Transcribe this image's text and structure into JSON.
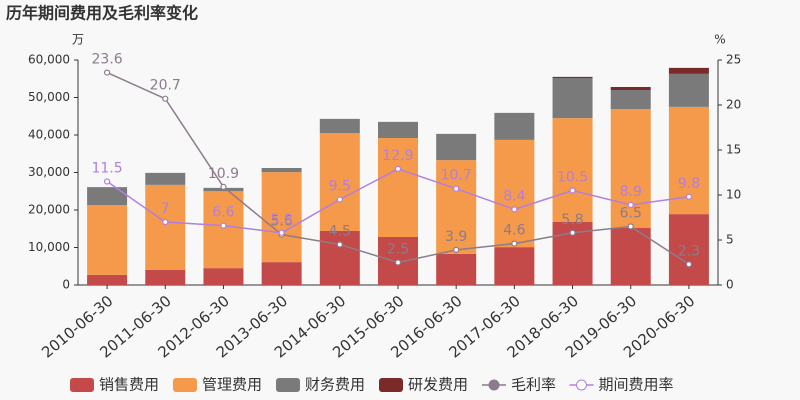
{
  "chart_data": {
    "type": "bar",
    "title": "历年期间费用及毛利率变化",
    "y_unit": "万",
    "y2_unit": "%",
    "categories": [
      "2010-06-30",
      "2011-06-30",
      "2012-06-30",
      "2013-06-30",
      "2014-06-30",
      "2015-06-30",
      "2016-06-30",
      "2017-06-30",
      "2018-06-30",
      "2019-06-30",
      "2020-06-30"
    ],
    "series": [
      {
        "name": "销售费用",
        "type": "bar",
        "color": "#c44a4a",
        "values": [
          2700,
          4000,
          4500,
          6100,
          14400,
          12800,
          8300,
          10100,
          16800,
          15200,
          18900
        ]
      },
      {
        "name": "管理费用",
        "type": "bar",
        "color": "#f5994a",
        "values": [
          18600,
          22700,
          20500,
          24000,
          26100,
          26400,
          25000,
          28600,
          27700,
          31700,
          28600
        ]
      },
      {
        "name": "财务费用",
        "type": "bar",
        "color": "#7a7a7a",
        "values": [
          4800,
          3200,
          900,
          1100,
          3800,
          4300,
          7000,
          7200,
          10700,
          5100,
          8800
        ]
      },
      {
        "name": "研发费用",
        "type": "bar",
        "color": "#7b2a2a",
        "values": [
          0,
          0,
          0,
          0,
          0,
          0,
          0,
          0,
          300,
          800,
          1600
        ]
      },
      {
        "name": "毛利率",
        "type": "line",
        "axis": "y2",
        "color": "#8c7b8c",
        "values": [
          23.6,
          20.7,
          10.9,
          5.6,
          4.5,
          2.5,
          3.9,
          4.6,
          5.8,
          6.5,
          2.3
        ]
      },
      {
        "name": "期间费用率",
        "type": "line",
        "axis": "y2",
        "color": "#b27fe0",
        "values": [
          11.5,
          7,
          6.6,
          5.8,
          9.5,
          12.9,
          10.7,
          8.4,
          10.5,
          8.9,
          9.8
        ]
      }
    ],
    "ylim": [
      0,
      60000
    ],
    "yticks": [
      0,
      {
        "value": 10000,
        "label": "10,000"
      },
      {
        "value": 20000,
        "label": "20,000"
      },
      {
        "value": 30000,
        "label": "30,000"
      },
      {
        "value": 40000,
        "label": "40,000"
      },
      {
        "value": 50000,
        "label": "50,000"
      },
      {
        "value": 60000,
        "label": "60,000"
      }
    ],
    "y2lim": [
      0,
      25
    ],
    "y2ticks": [
      0,
      5,
      10,
      15,
      20,
      25
    ],
    "legend": "bottom"
  }
}
